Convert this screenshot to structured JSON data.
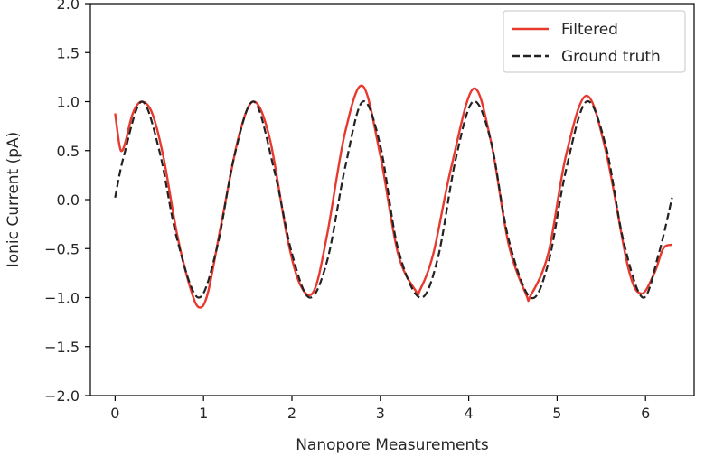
{
  "chart_data": {
    "type": "line",
    "xlabel": "Nanopore Measurements",
    "ylabel": "Ionic Current (pA)",
    "xlim": [
      -0.28,
      6.55
    ],
    "ylim": [
      -2.0,
      2.0
    ],
    "xticks": [
      0,
      1,
      2,
      3,
      4,
      5,
      6
    ],
    "xtick_labels": [
      "0",
      "1",
      "2",
      "3",
      "4",
      "5",
      "6"
    ],
    "yticks": [
      2.0,
      1.5,
      1.0,
      0.5,
      0.0,
      -0.5,
      -1.0,
      -1.5,
      -2.0
    ],
    "ytick_labels": [
      "2.0",
      "1.5",
      "1.0",
      "0.5",
      "0.0",
      "−0.5",
      "−1.0",
      "−1.5",
      "−2.0"
    ],
    "grid": false,
    "legend_position": "top-right",
    "series": [
      {
        "name": "Filtered",
        "color": "#e8392f",
        "style": "solid",
        "x": [
          0.0,
          0.05,
          0.08,
          0.12,
          0.2,
          0.3,
          0.42,
          0.55,
          0.7,
          0.85,
          0.95,
          1.05,
          1.2,
          1.4,
          1.57,
          1.75,
          1.95,
          2.1,
          2.25,
          2.4,
          2.6,
          2.8,
          3.0,
          3.2,
          3.4,
          3.45,
          3.6,
          3.8,
          4.05,
          4.25,
          4.45,
          4.65,
          4.7,
          4.9,
          5.1,
          5.33,
          5.55,
          5.8,
          5.95,
          6.1,
          6.2,
          6.3
        ],
        "y": [
          0.88,
          0.55,
          0.5,
          0.6,
          0.88,
          1.0,
          0.88,
          0.42,
          -0.35,
          -0.9,
          -1.1,
          -0.95,
          -0.25,
          0.65,
          1.0,
          0.62,
          -0.4,
          -0.88,
          -0.93,
          -0.35,
          0.68,
          1.16,
          0.45,
          -0.55,
          -0.93,
          -0.92,
          -0.55,
          0.32,
          1.13,
          0.6,
          -0.45,
          -0.97,
          -0.98,
          -0.55,
          0.45,
          1.06,
          0.5,
          -0.68,
          -0.96,
          -0.75,
          -0.5,
          -0.46
        ]
      },
      {
        "name": "Ground truth",
        "color": "#222222",
        "style": "dashed",
        "x": [
          0.0,
          0.1,
          0.3,
          0.5,
          0.7,
          0.94,
          1.15,
          1.35,
          1.57,
          1.8,
          2.0,
          2.2,
          2.4,
          2.6,
          2.8,
          3.0,
          3.2,
          3.45,
          3.65,
          3.85,
          4.05,
          4.25,
          4.45,
          4.7,
          4.9,
          5.1,
          5.33,
          5.55,
          5.75,
          5.97,
          6.15,
          6.3
        ],
        "y": [
          0.02,
          0.45,
          1.0,
          0.5,
          -0.4,
          -1.0,
          -0.5,
          0.45,
          1.0,
          0.3,
          -0.55,
          -1.0,
          -0.62,
          0.32,
          1.0,
          0.55,
          -0.5,
          -1.0,
          -0.6,
          0.4,
          1.0,
          0.6,
          -0.4,
          -1.0,
          -0.65,
          0.3,
          1.0,
          0.55,
          -0.42,
          -1.0,
          -0.55,
          0.02
        ]
      }
    ]
  }
}
